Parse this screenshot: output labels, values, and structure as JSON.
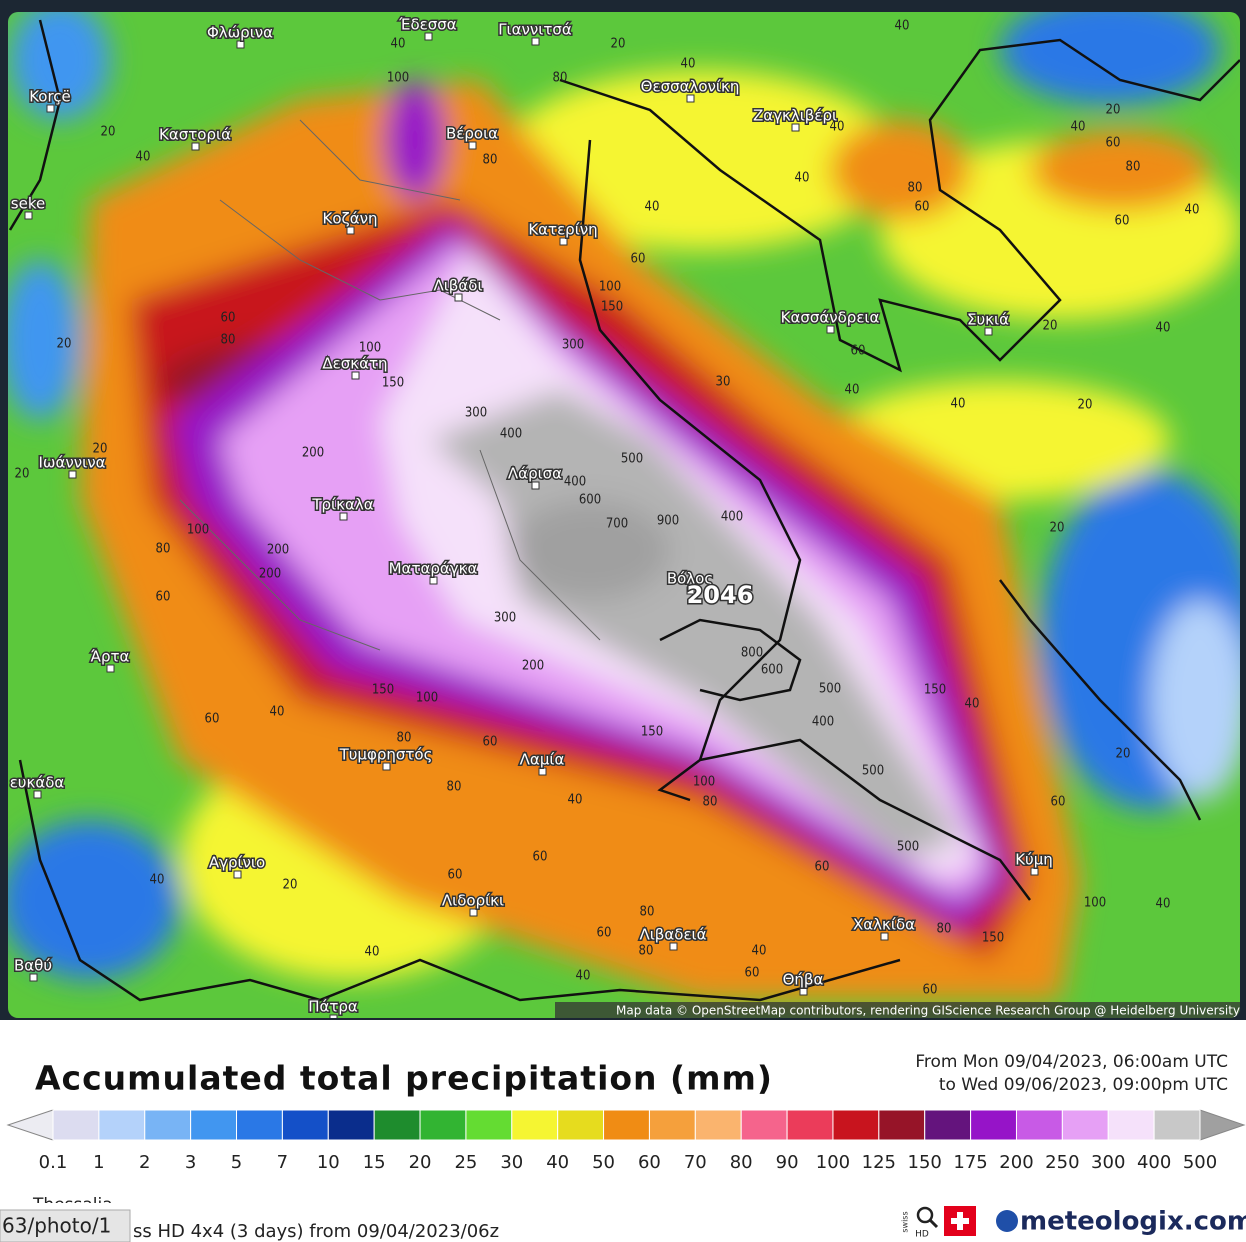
{
  "map": {
    "places": [
      "Φλώρινα",
      "Έδεσσα",
      "Γιαννιτσά",
      "Θεσσαλονίκη",
      "Korçë",
      "Καστοριά",
      "Βέροια",
      "Ζαγκλιβέρι",
      "seke",
      "Κοζάνη",
      "Κατερίνη",
      "Λιβάδι",
      "Κασσάνδρεια",
      "Συκιά",
      "Δεσκάτη",
      "Ιωάννινα",
      "Λάρισα",
      "Τρίκαλα",
      "Ματαράγκα",
      "Βόλος",
      "Άρτα",
      "Τυμφρηστός",
      "Λαμία",
      "ευκάδα",
      "Αγρίνιο",
      "Κύμη",
      "Λιδορίκι",
      "Χαλκίδα",
      "Λιβαδειά",
      "Βαθύ",
      "Θήβα",
      "Πάτρα"
    ],
    "peak_label": "2046",
    "contour_labels": [
      "40",
      "20",
      "40",
      "40",
      "100",
      "80",
      "20",
      "40",
      "80",
      "40",
      "40",
      "20",
      "40",
      "60",
      "80",
      "40",
      "60",
      "80",
      "60",
      "40",
      "60",
      "100",
      "150",
      "60",
      "80",
      "20",
      "100",
      "300",
      "150",
      "60",
      "40",
      "20",
      "30",
      "40",
      "40",
      "20",
      "300",
      "400",
      "200",
      "500",
      "400",
      "600",
      "700",
      "900",
      "400",
      "20",
      "20",
      "20",
      "100",
      "80",
      "200",
      "200",
      "60",
      "300",
      "800",
      "600",
      "500",
      "400",
      "150",
      "40",
      "200",
      "60",
      "40",
      "150",
      "100",
      "80",
      "150",
      "60",
      "20",
      "500",
      "100",
      "80",
      "60",
      "40",
      "80",
      "500",
      "60",
      "60",
      "40",
      "20",
      "60",
      "100",
      "40",
      "80",
      "60",
      "80",
      "80",
      "150",
      "40",
      "60",
      "40",
      "40",
      "60"
    ],
    "attribution": "Map data © OpenStreetMap contributors, rendering GIScience Research Group @ Heidelberg University"
  },
  "legend": {
    "title": "Accumulated total precipitation (mm)",
    "period_from": "From Mon 09/04/2023, 06:00am UTC",
    "period_to": "to Wed 09/06/2023, 09:00pm UTC",
    "colors": [
      "#dcdcf0",
      "#b4d2fa",
      "#78b4f5",
      "#4196f0",
      "#2a78e6",
      "#1450c8",
      "#0a2d8c",
      "#1e8c2d",
      "#32b432",
      "#64dc32",
      "#f5f532",
      "#e6dc1e",
      "#f08c14",
      "#f5a03c",
      "#fab46e",
      "#f5648c",
      "#eb3c5a",
      "#c8141e",
      "#961428",
      "#64147d",
      "#9614c8",
      "#c85ae6",
      "#e6a0f5",
      "#f5e1fa",
      "#c8c8c8"
    ],
    "end_colors": [
      "#ececf2",
      "#a0a0a0"
    ],
    "labels": [
      "0.1",
      "1",
      "2",
      "3",
      "5",
      "7",
      "10",
      "15",
      "20",
      "25",
      "30",
      "40",
      "50",
      "60",
      "70",
      "80",
      "90",
      "100",
      "125",
      "150",
      "175",
      "200",
      "250",
      "300",
      "400",
      "500"
    ]
  },
  "footer": {
    "region": "Thessalia",
    "model": "ss HD 4x4 (3 days) from 09/04/2023/06z",
    "brand": "meteologix.com",
    "swiss": "swiss",
    "hd": "HD"
  },
  "overlay": {
    "link": "63/photo/1"
  }
}
